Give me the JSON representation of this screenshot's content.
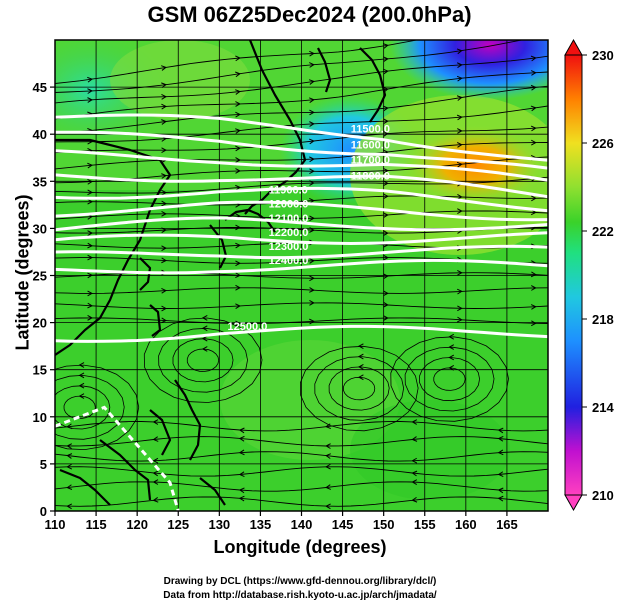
{
  "title": "GSM 06Z25Dec2024 (200.0hPa)",
  "axes": {
    "xlabel": "Longitude (degrees)",
    "ylabel": "Latitude  (degrees)",
    "xticks": [
      "110",
      "115",
      "120",
      "125",
      "130",
      "135",
      "140",
      "145",
      "150",
      "155",
      "160",
      "165"
    ],
    "yticks": [
      "0",
      "5",
      "10",
      "15",
      "20",
      "25",
      "30",
      "35",
      "40",
      "45"
    ],
    "xlim": [
      110,
      170
    ],
    "ylim": [
      0,
      50
    ]
  },
  "colorbar": {
    "labels": [
      "210",
      "214",
      "218",
      "222",
      "226",
      "230"
    ],
    "min": 210,
    "max": 230,
    "colors": [
      "#ff40c0",
      "#c010d0",
      "#2020e0",
      "#1e90ff",
      "#20c8e0",
      "#20e080",
      "#3ad22a",
      "#90e030",
      "#f0e020",
      "#ff9a00",
      "#ff5000",
      "#f01010"
    ]
  },
  "contours": {
    "unit": "m",
    "values": [
      11500,
      11600,
      11700,
      11800,
      11900,
      12000,
      12100,
      12200,
      12300,
      12400,
      12500
    ],
    "visible_labels": [
      "11500.0",
      "11600.0",
      "11700.0",
      "11800.0",
      "11900.0",
      "12000.0",
      "12100.0",
      "12200.0",
      "12300.0",
      "12400.0",
      "12500.0"
    ],
    "latitudes_at_150E": [
      40,
      38.3,
      36.7,
      35.0,
      33.5,
      32.0,
      30.5,
      29.0,
      27.5,
      26.0,
      19.0
    ]
  },
  "features": {
    "warm_maximum": {
      "lon": 159,
      "lat": 39,
      "value": 226
    },
    "cold_minimum": {
      "lon": 157,
      "lat": 48,
      "value": 214
    },
    "cool_trough": {
      "lon": 142,
      "lat": 40,
      "value": 218
    }
  },
  "credits": {
    "line1": "Drawing by DCL (https://www.gfd-dennou.org/library/dcl/)",
    "line2": "Data from http://database.rish.kyoto-u.ac.jp/arch/jmadata/"
  }
}
